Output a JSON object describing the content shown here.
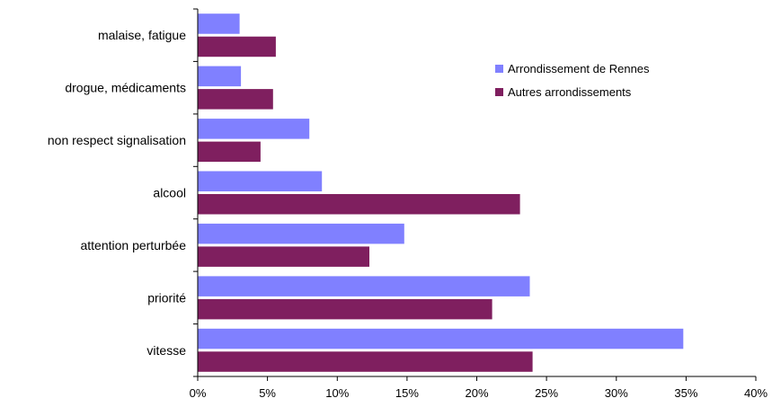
{
  "chart_data": {
    "type": "bar",
    "orientation": "horizontal",
    "categories": [
      "vitesse",
      "priorité",
      "attention perturbée",
      "alcool",
      "non respect signalisation",
      "drogue, médicaments",
      "malaise, fatigue"
    ],
    "series": [
      {
        "name": "Arrondissement de Rennes",
        "color": "#8080ff",
        "values": [
          34.8,
          23.8,
          14.8,
          8.9,
          8.0,
          3.1,
          3.0
        ]
      },
      {
        "name": "Autres arrondissements",
        "color": "#7f1f5f",
        "values": [
          24.0,
          21.1,
          12.3,
          23.1,
          4.5,
          5.4,
          5.6
        ]
      }
    ],
    "xlim": [
      0,
      40
    ],
    "xticks": [
      "0%",
      "5%",
      "10%",
      "15%",
      "20%",
      "25%",
      "30%",
      "35%",
      "40%"
    ],
    "xtick_values": [
      0,
      5,
      10,
      15,
      20,
      25,
      30,
      35,
      40
    ],
    "grid": false,
    "legend_position": "top-right",
    "title": "",
    "xlabel": "",
    "ylabel": ""
  }
}
